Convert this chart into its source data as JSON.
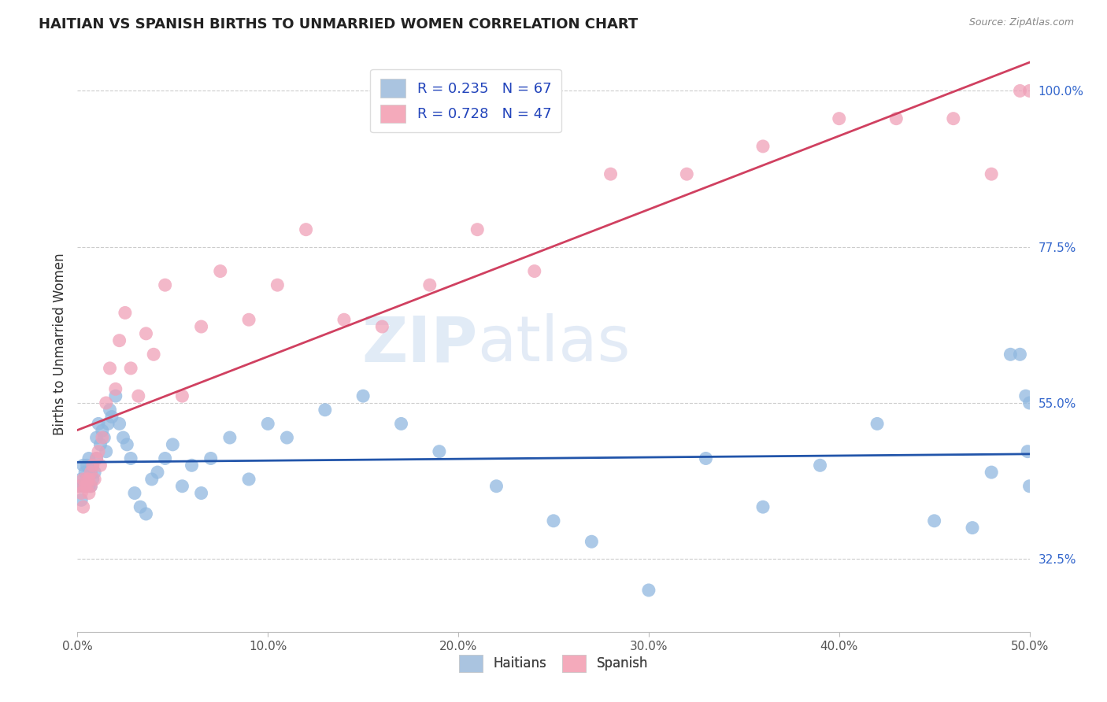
{
  "title": "HAITIAN VS SPANISH BIRTHS TO UNMARRIED WOMEN CORRELATION CHART",
  "source": "Source: ZipAtlas.com",
  "ylabel": "Births to Unmarried Women",
  "ytick_labels": [
    "32.5%",
    "55.0%",
    "77.5%",
    "100.0%"
  ],
  "ytick_values": [
    0.325,
    0.55,
    0.775,
    1.0
  ],
  "legend_entries": [
    {
      "label": "R = 0.235   N = 67",
      "color": "#aac4e0"
    },
    {
      "label": "R = 0.728   N = 47",
      "color": "#f4aabb"
    }
  ],
  "legend_labels_bottom": [
    "Haitians",
    "Spanish"
  ],
  "blue_scatter_color": "#90b8e0",
  "pink_scatter_color": "#f0a0b8",
  "blue_line_color": "#2255aa",
  "pink_line_color": "#d04060",
  "watermark_zip": "ZIP",
  "watermark_atlas": "atlas",
  "background_color": "#ffffff",
  "haitians_x": [
    0.001,
    0.002,
    0.002,
    0.003,
    0.003,
    0.004,
    0.004,
    0.005,
    0.005,
    0.006,
    0.006,
    0.007,
    0.007,
    0.008,
    0.008,
    0.009,
    0.01,
    0.01,
    0.011,
    0.012,
    0.013,
    0.014,
    0.015,
    0.016,
    0.017,
    0.018,
    0.02,
    0.022,
    0.024,
    0.026,
    0.028,
    0.03,
    0.033,
    0.036,
    0.039,
    0.042,
    0.046,
    0.05,
    0.055,
    0.06,
    0.065,
    0.07,
    0.08,
    0.09,
    0.1,
    0.11,
    0.13,
    0.15,
    0.17,
    0.19,
    0.22,
    0.25,
    0.27,
    0.3,
    0.33,
    0.36,
    0.39,
    0.42,
    0.45,
    0.47,
    0.48,
    0.49,
    0.495,
    0.498,
    0.499,
    0.5,
    0.5
  ],
  "haitians_y": [
    0.43,
    0.44,
    0.41,
    0.46,
    0.43,
    0.45,
    0.43,
    0.44,
    0.46,
    0.43,
    0.47,
    0.45,
    0.43,
    0.46,
    0.44,
    0.45,
    0.47,
    0.5,
    0.52,
    0.49,
    0.51,
    0.5,
    0.48,
    0.52,
    0.54,
    0.53,
    0.56,
    0.52,
    0.5,
    0.49,
    0.47,
    0.42,
    0.4,
    0.39,
    0.44,
    0.45,
    0.47,
    0.49,
    0.43,
    0.46,
    0.42,
    0.47,
    0.5,
    0.44,
    0.52,
    0.5,
    0.54,
    0.56,
    0.52,
    0.48,
    0.43,
    0.38,
    0.35,
    0.28,
    0.47,
    0.4,
    0.46,
    0.52,
    0.38,
    0.37,
    0.45,
    0.62,
    0.62,
    0.56,
    0.48,
    0.43,
    0.55
  ],
  "spanish_x": [
    0.001,
    0.002,
    0.003,
    0.003,
    0.004,
    0.005,
    0.005,
    0.006,
    0.006,
    0.007,
    0.007,
    0.008,
    0.009,
    0.01,
    0.011,
    0.012,
    0.013,
    0.015,
    0.017,
    0.02,
    0.022,
    0.025,
    0.028,
    0.032,
    0.036,
    0.04,
    0.046,
    0.055,
    0.065,
    0.075,
    0.09,
    0.105,
    0.12,
    0.14,
    0.16,
    0.185,
    0.21,
    0.24,
    0.28,
    0.32,
    0.36,
    0.4,
    0.43,
    0.46,
    0.48,
    0.495,
    0.5
  ],
  "spanish_y": [
    0.43,
    0.42,
    0.44,
    0.4,
    0.43,
    0.44,
    0.43,
    0.42,
    0.44,
    0.45,
    0.43,
    0.46,
    0.44,
    0.47,
    0.48,
    0.46,
    0.5,
    0.55,
    0.6,
    0.57,
    0.64,
    0.68,
    0.6,
    0.56,
    0.65,
    0.62,
    0.72,
    0.56,
    0.66,
    0.74,
    0.67,
    0.72,
    0.8,
    0.67,
    0.66,
    0.72,
    0.8,
    0.74,
    0.88,
    0.88,
    0.92,
    0.96,
    0.96,
    0.96,
    0.88,
    1.0,
    1.0
  ],
  "xlim": [
    0.0,
    0.5
  ],
  "ylim": [
    0.22,
    1.05
  ],
  "xtick_positions": [
    0.0,
    0.1,
    0.2,
    0.3,
    0.4,
    0.5
  ]
}
